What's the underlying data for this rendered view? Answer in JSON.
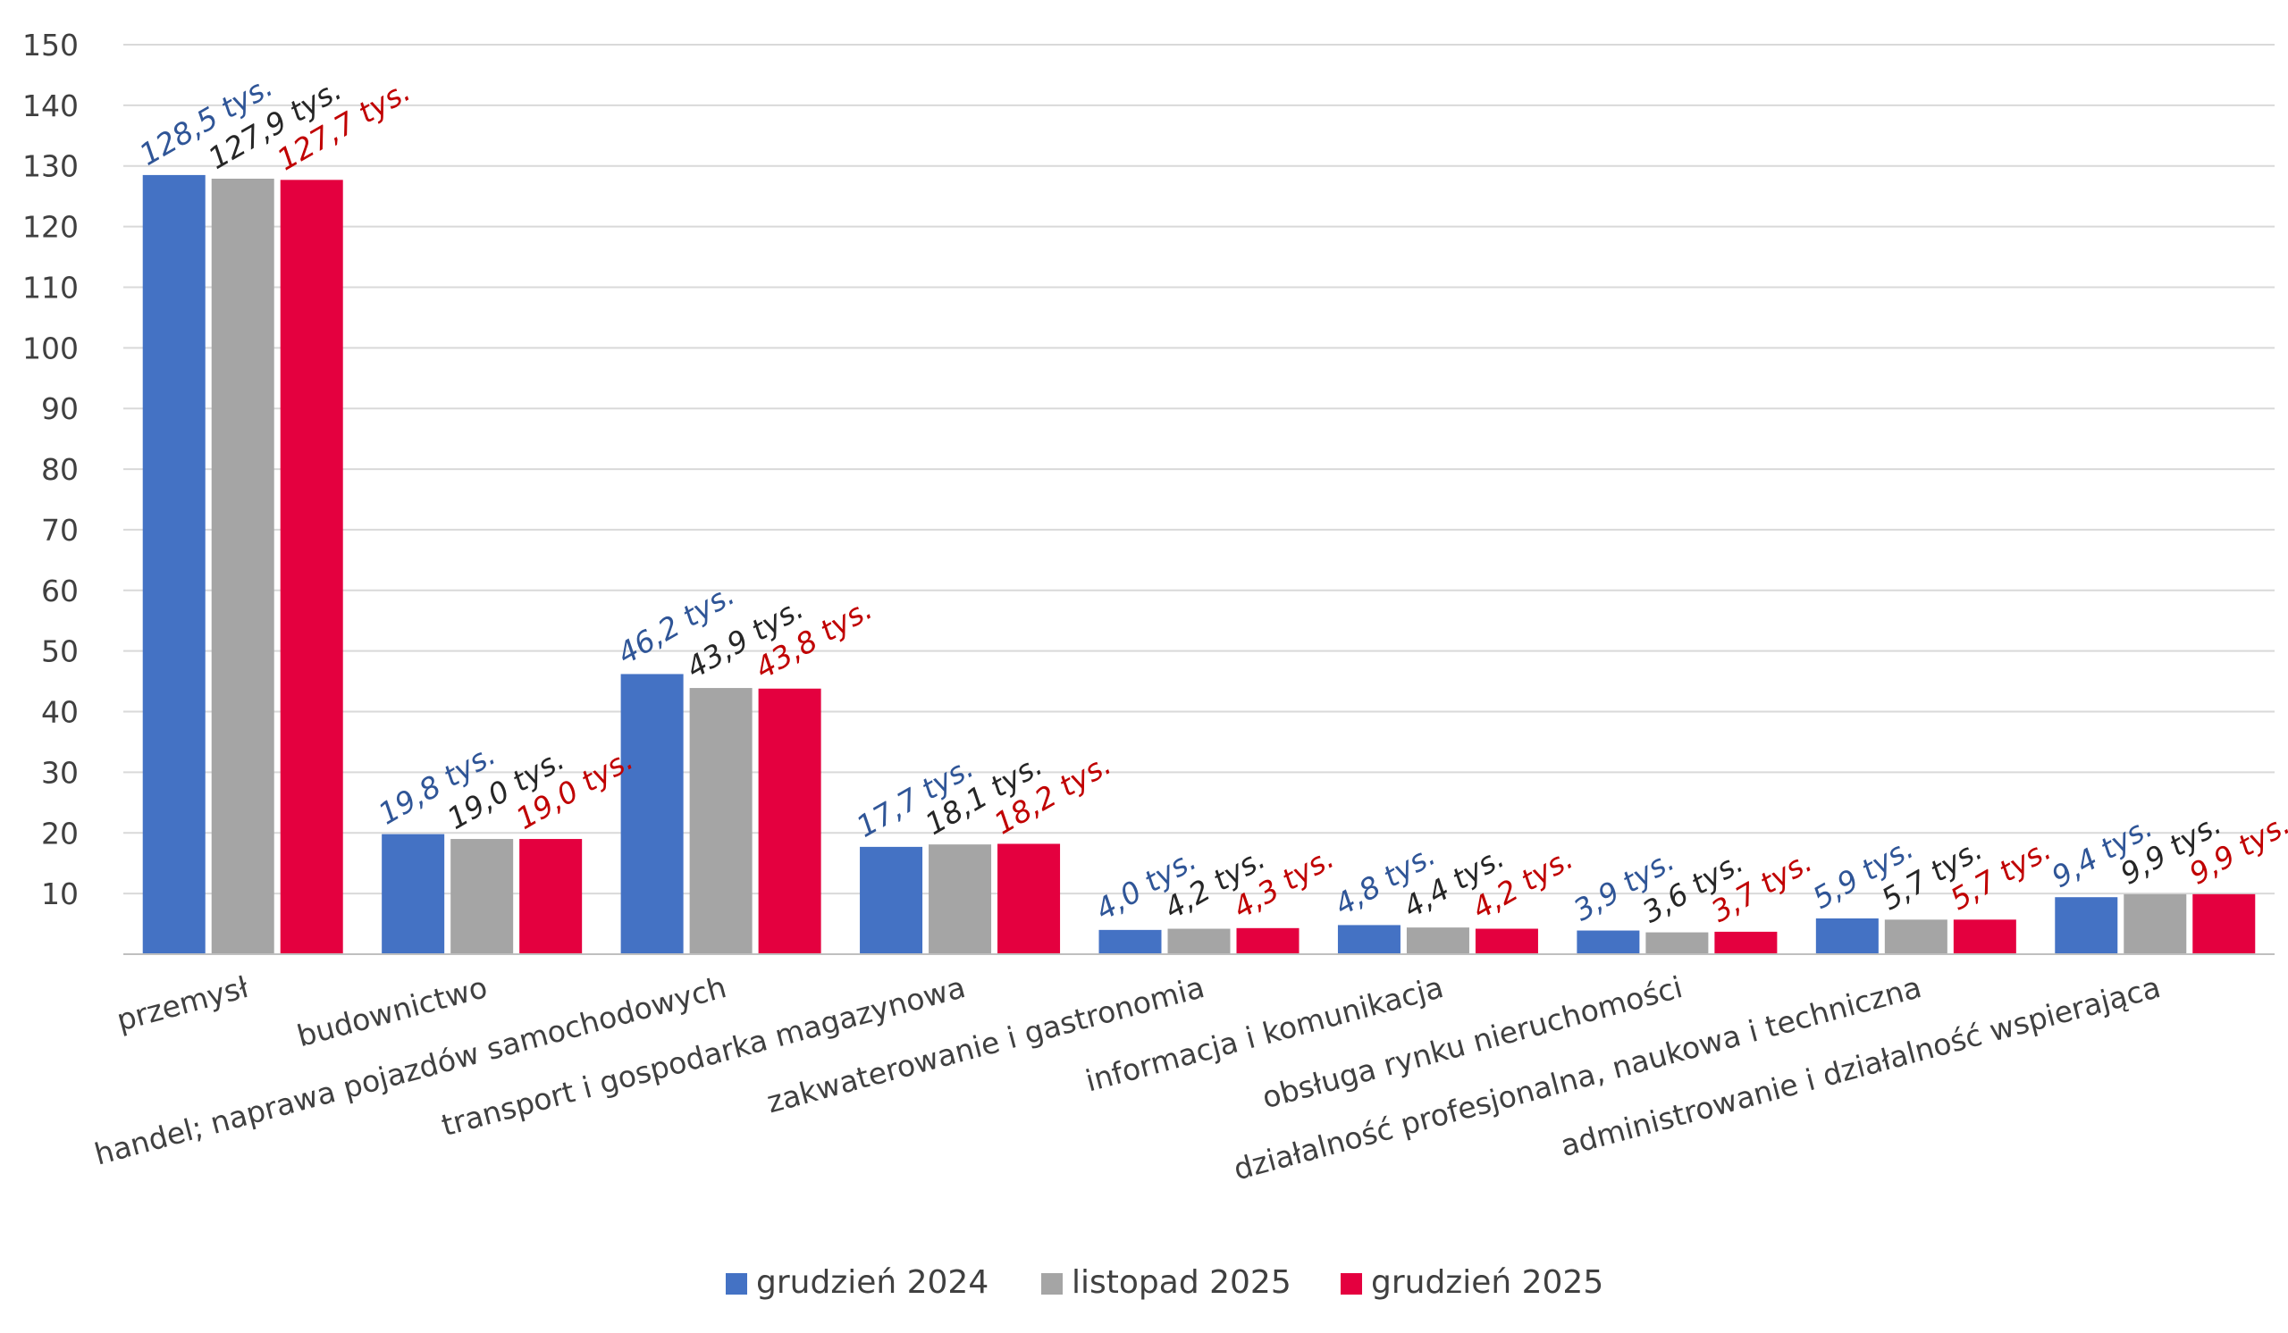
{
  "chart_data": {
    "type": "bar",
    "title": "",
    "xlabel": "",
    "ylabel": "",
    "ylim": [
      0,
      150
    ],
    "yticks": [
      "10",
      "20",
      "30",
      "40",
      "50",
      "60",
      "70",
      "80",
      "90",
      "100",
      "110",
      "120",
      "130",
      "140",
      "150"
    ],
    "grid": true,
    "legend_position": "bottom",
    "categories": [
      "przemysł",
      "budownictwo",
      "handel; naprawa pojazdów samochodowych",
      "transport i gospodarka magazynowa",
      "zakwaterowanie i gastronomia",
      "informacja i komunikacja",
      "obsługa rynku nieruchomości",
      "działalność profesjonalna, naukowa i techniczna",
      "administrowanie i działalność wspierająca"
    ],
    "series": [
      {
        "name": "grudzień 2024",
        "color": "#4472C4",
        "label_color": "#2F5597",
        "values": [
          128.5,
          19.8,
          46.2,
          17.7,
          4.0,
          4.8,
          3.9,
          5.9,
          9.4
        ],
        "labels": [
          "128,5 tys.",
          "19,8 tys.",
          "46,2 tys.",
          "17,7 tys.",
          "4,0 tys.",
          "4,8 tys.",
          "3,9 tys.",
          "5,9 tys.",
          "9,4 tys."
        ]
      },
      {
        "name": "listopad 2025",
        "color": "#A5A5A5",
        "label_color": "#262626",
        "values": [
          127.9,
          19.0,
          43.9,
          18.1,
          4.2,
          4.4,
          3.6,
          5.7,
          9.9
        ],
        "labels": [
          "127,9 tys.",
          "19,0 tys.",
          "43,9 tys.",
          "18,1 tys.",
          "4,2 tys.",
          "4,4 tys.",
          "3,6 tys.",
          "5,7 tys.",
          "9,9 tys."
        ]
      },
      {
        "name": "grudzień 2025",
        "color": "#E4003F",
        "label_color": "#C00000",
        "values": [
          127.7,
          19.0,
          43.8,
          18.2,
          4.3,
          4.2,
          3.7,
          5.7,
          9.9
        ],
        "labels": [
          "127,7 tys.",
          "19,0 tys.",
          "43,8 tys.",
          "18,2 tys.",
          "4,3 tys.",
          "4,2 tys.",
          "3,7 tys.",
          "5,7 tys.",
          "9,9 tys."
        ]
      }
    ]
  }
}
